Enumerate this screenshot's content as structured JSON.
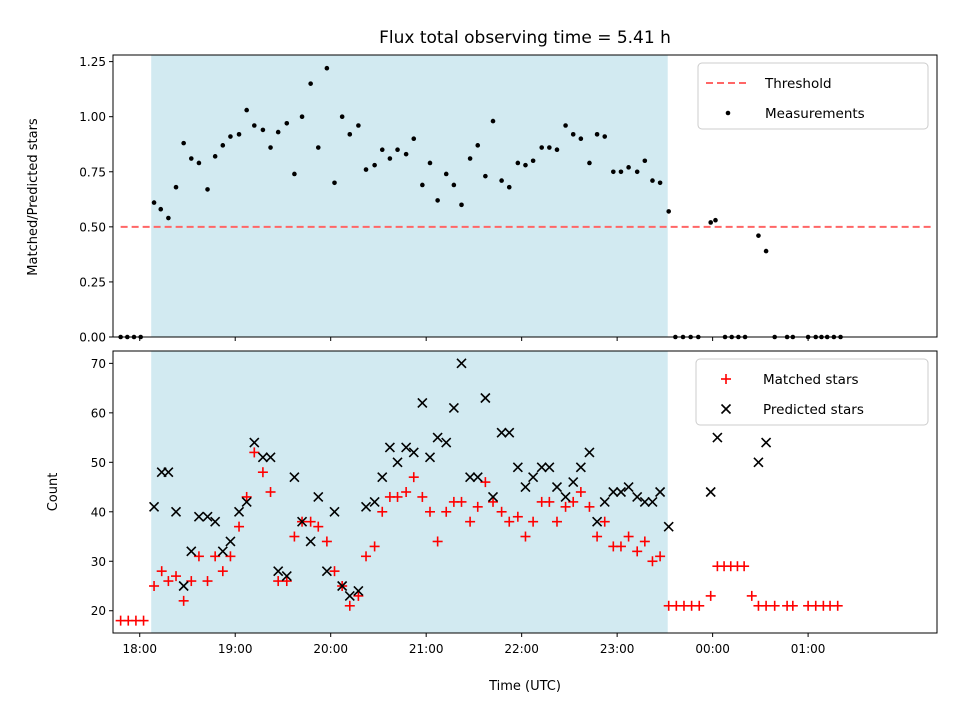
{
  "chart_data": {
    "title": "Flux total observing time = 5.41 h",
    "xlabel": "Time (UTC)",
    "x_unit": "hours UTC (values >= 24 are after midnight)",
    "x_tick_labels": [
      {
        "value": 18,
        "label": "18:00"
      },
      {
        "value": 19,
        "label": "19:00"
      },
      {
        "value": 20,
        "label": "20:00"
      },
      {
        "value": 21,
        "label": "21:00"
      },
      {
        "value": 22,
        "label": "22:00"
      },
      {
        "value": 23,
        "label": "23:00"
      },
      {
        "value": 24,
        "label": "00:00"
      },
      {
        "value": 25,
        "label": "01:00"
      }
    ],
    "xlim": [
      17.72,
      26.35
    ],
    "observing_window": [
      18.12,
      23.53
    ],
    "colors": {
      "window": "#add8e6",
      "threshold": "#ff6666",
      "measurements": "#000000",
      "matched": "#ff0000",
      "predicted": "#000000"
    },
    "panels": [
      {
        "type": "scatter",
        "ylabel": "Matched/Predicted stars",
        "ylim": [
          0,
          1.28
        ],
        "y_ticks": [
          {
            "value": 0,
            "label": "0.00"
          },
          {
            "value": 0.25,
            "label": "0.25"
          },
          {
            "value": 0.5,
            "label": "0.50"
          },
          {
            "value": 0.75,
            "label": "0.75"
          },
          {
            "value": 1.0,
            "label": "1.00"
          },
          {
            "value": 1.25,
            "label": "1.25"
          }
        ],
        "legend_position": "top-right",
        "threshold": {
          "name": "Threshold",
          "y": 0.5,
          "x_range": [
            17.8,
            26.3
          ]
        },
        "series": [
          {
            "name": "Measurements",
            "x": [
              17.8,
              17.87,
              17.94,
              18.01,
              18.15,
              18.22,
              18.3,
              18.38,
              18.46,
              18.54,
              18.62,
              18.71,
              18.79,
              18.87,
              18.95,
              19.04,
              19.12,
              19.2,
              19.29,
              19.37,
              19.45,
              19.54,
              19.62,
              19.7,
              19.79,
              19.87,
              19.96,
              20.04,
              20.12,
              20.2,
              20.29,
              20.37,
              20.46,
              20.54,
              20.62,
              20.7,
              20.79,
              20.87,
              20.96,
              21.04,
              21.12,
              21.21,
              21.29,
              21.37,
              21.46,
              21.54,
              21.62,
              21.7,
              21.79,
              21.87,
              21.96,
              22.04,
              22.12,
              22.21,
              22.29,
              22.37,
              22.46,
              22.54,
              22.62,
              22.71,
              22.79,
              22.87,
              22.96,
              23.04,
              23.12,
              23.21,
              23.29,
              23.37,
              23.45,
              23.54,
              23.61,
              23.69,
              23.77,
              23.85,
              23.98,
              24.03,
              24.13,
              24.2,
              24.27,
              24.34,
              24.48,
              24.56,
              24.65,
              24.78,
              24.84,
              25.0,
              25.08,
              25.14,
              25.2,
              25.27,
              25.34
            ],
            "y": [
              0.0,
              0.0,
              0.0,
              0.0,
              0.61,
              0.58,
              0.54,
              0.68,
              0.88,
              0.81,
              0.79,
              0.67,
              0.82,
              0.87,
              0.91,
              0.92,
              1.03,
              0.96,
              0.94,
              0.86,
              0.93,
              0.97,
              0.74,
              1.0,
              1.15,
              0.86,
              1.22,
              0.7,
              1.0,
              0.92,
              0.96,
              0.76,
              0.78,
              0.85,
              0.81,
              0.85,
              0.83,
              0.9,
              0.69,
              0.79,
              0.62,
              0.74,
              0.69,
              0.6,
              0.81,
              0.87,
              0.73,
              0.98,
              0.71,
              0.68,
              0.79,
              0.78,
              0.8,
              0.86,
              0.86,
              0.85,
              0.96,
              0.92,
              0.9,
              0.79,
              0.92,
              0.91,
              0.75,
              0.75,
              0.77,
              0.75,
              0.8,
              0.71,
              0.7,
              0.57,
              0.0,
              0.0,
              0.0,
              0.0,
              0.52,
              0.53,
              0.0,
              0.0,
              0.0,
              0.0,
              0.46,
              0.39,
              0.0,
              0.0,
              0.0,
              0.0,
              0.0,
              0.0,
              0.0,
              0.0,
              0.0
            ]
          }
        ]
      },
      {
        "type": "scatter",
        "ylabel": "Count",
        "ylim": [
          15.5,
          72.5
        ],
        "y_ticks": [
          {
            "value": 20,
            "label": "20"
          },
          {
            "value": 30,
            "label": "30"
          },
          {
            "value": 40,
            "label": "40"
          },
          {
            "value": 50,
            "label": "50"
          },
          {
            "value": 60,
            "label": "60"
          },
          {
            "value": 70,
            "label": "70"
          }
        ],
        "legend_position": "top-right",
        "series": [
          {
            "name": "Matched stars",
            "x": [
              17.8,
              17.88,
              17.96,
              18.04,
              18.15,
              18.23,
              18.3,
              18.38,
              18.46,
              18.54,
              18.62,
              18.71,
              18.79,
              18.87,
              18.95,
              19.04,
              19.12,
              19.2,
              19.29,
              19.37,
              19.45,
              19.54,
              19.62,
              19.7,
              19.79,
              19.87,
              19.96,
              20.04,
              20.12,
              20.2,
              20.29,
              20.37,
              20.46,
              20.54,
              20.62,
              20.7,
              20.79,
              20.87,
              20.96,
              21.04,
              21.12,
              21.21,
              21.29,
              21.37,
              21.46,
              21.54,
              21.62,
              21.7,
              21.79,
              21.87,
              21.96,
              22.04,
              22.12,
              22.21,
              22.29,
              22.37,
              22.46,
              22.54,
              22.62,
              22.71,
              22.79,
              22.87,
              22.96,
              23.04,
              23.12,
              23.21,
              23.29,
              23.37,
              23.45,
              23.54,
              23.62,
              23.7,
              23.78,
              23.86,
              23.98,
              24.05,
              24.12,
              24.19,
              24.26,
              24.33,
              24.41,
              24.48,
              24.56,
              24.65,
              24.78,
              24.84,
              25.0,
              25.08,
              25.16,
              25.23,
              25.31
            ],
            "y": [
              18,
              18,
              18,
              18,
              25,
              28,
              26,
              27,
              22,
              26,
              31,
              26,
              31,
              28,
              31,
              37,
              43,
              52,
              48,
              44,
              26,
              26,
              35,
              38,
              38,
              37,
              34,
              28,
              25,
              21,
              23,
              31,
              33,
              40,
              43,
              43,
              44,
              47,
              43,
              40,
              34,
              40,
              42,
              42,
              38,
              41,
              46,
              42,
              40,
              38,
              39,
              35,
              38,
              42,
              42,
              38,
              41,
              42,
              44,
              41,
              35,
              38,
              33,
              33,
              35,
              32,
              34,
              30,
              31,
              21,
              21,
              21,
              21,
              21,
              23,
              29,
              29,
              29,
              29,
              29,
              23,
              21,
              21,
              21,
              21,
              21,
              21,
              21,
              21,
              21,
              21
            ]
          },
          {
            "name": "Predicted stars",
            "x": [
              18.15,
              18.23,
              18.3,
              18.38,
              18.46,
              18.54,
              18.62,
              18.71,
              18.79,
              18.87,
              18.95,
              19.04,
              19.12,
              19.2,
              19.29,
              19.37,
              19.45,
              19.54,
              19.62,
              19.7,
              19.79,
              19.87,
              19.96,
              20.04,
              20.12,
              20.2,
              20.29,
              20.37,
              20.46,
              20.54,
              20.62,
              20.7,
              20.79,
              20.87,
              20.96,
              21.04,
              21.12,
              21.21,
              21.29,
              21.37,
              21.46,
              21.54,
              21.62,
              21.7,
              21.79,
              21.87,
              21.96,
              22.04,
              22.12,
              22.21,
              22.29,
              22.37,
              22.46,
              22.54,
              22.62,
              22.71,
              22.79,
              22.87,
              22.96,
              23.04,
              23.12,
              23.21,
              23.29,
              23.37,
              23.45,
              23.54,
              23.98,
              24.05,
              24.48,
              24.56
            ],
            "y": [
              41,
              48,
              48,
              40,
              25,
              32,
              39,
              39,
              38,
              32,
              34,
              40,
              42,
              54,
              51,
              51,
              28,
              27,
              47,
              38,
              34,
              43,
              28,
              40,
              25,
              23,
              24,
              41,
              42,
              47,
              53,
              50,
              53,
              52,
              62,
              51,
              55,
              54,
              61,
              70,
              47,
              47,
              63,
              43,
              56,
              56,
              49,
              45,
              47,
              49,
              49,
              45,
              43,
              46,
              49,
              52,
              38,
              42,
              44,
              44,
              45,
              43,
              42,
              42,
              44,
              37,
              44,
              55,
              50,
              54
            ]
          }
        ]
      }
    ]
  }
}
